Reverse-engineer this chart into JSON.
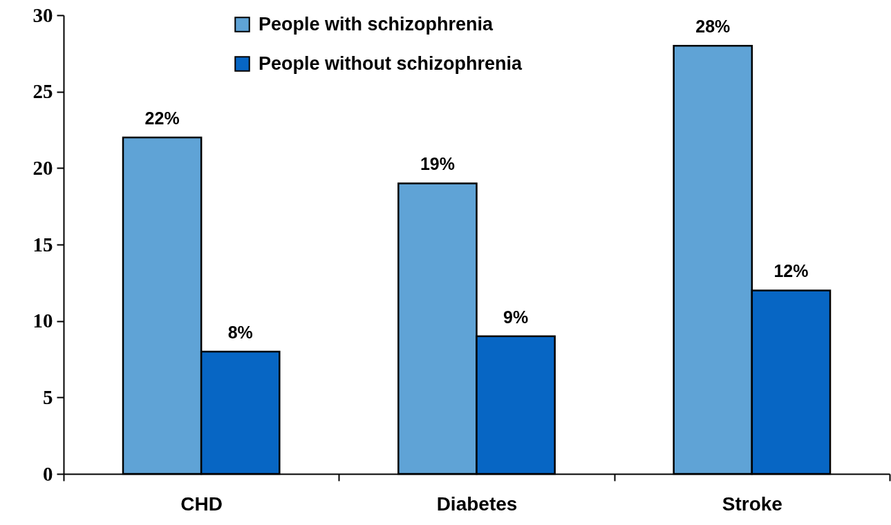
{
  "chart_data": {
    "type": "bar",
    "categories": [
      "CHD",
      "Diabetes",
      "Stroke"
    ],
    "series": [
      {
        "name": "People with schizophrenia",
        "color": "#5fa3d6",
        "values": [
          22,
          19,
          28
        ],
        "value_labels": [
          "22%",
          "19%",
          "28%"
        ]
      },
      {
        "name": "People without schizophrenia",
        "color": "#0766c4",
        "values": [
          8,
          9,
          12
        ],
        "value_labels": [
          "8%",
          "9%",
          "12%"
        ]
      }
    ],
    "ylim": [
      0,
      30
    ],
    "yticks": [
      0,
      5,
      10,
      15,
      20,
      25,
      30
    ],
    "grid": false,
    "legend": "top"
  }
}
